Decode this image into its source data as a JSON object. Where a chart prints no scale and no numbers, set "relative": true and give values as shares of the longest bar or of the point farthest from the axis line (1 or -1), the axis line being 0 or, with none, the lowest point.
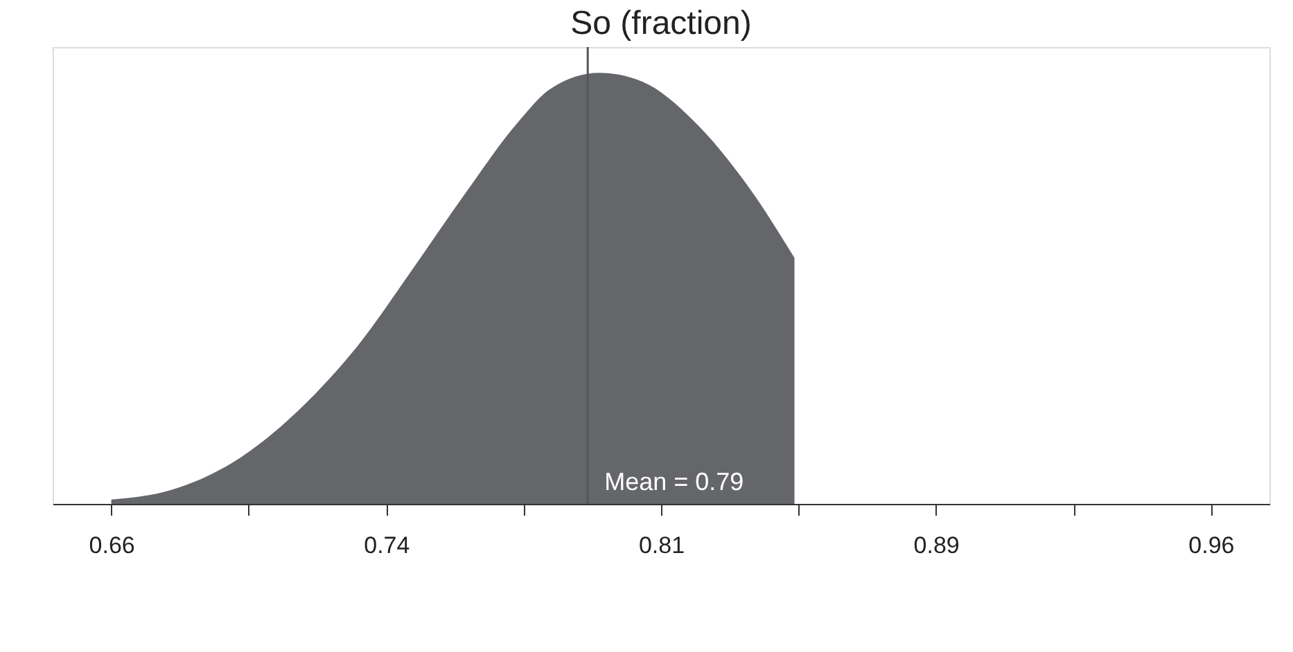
{
  "chart_data": {
    "type": "area",
    "title": "So (fraction)",
    "relative": true,
    "x": [
      0.66,
      0.6766,
      0.6955,
      0.7129,
      0.7277,
      0.742,
      0.7568,
      0.7711,
      0.7798,
      0.7931,
      0.8048,
      0.8191,
      0.8339,
      0.8464
    ],
    "series": [
      {
        "color": "#65666a",
        "values": [
          0.01,
          0.033,
          0.109,
          0.232,
          0.372,
          0.542,
          0.723,
          0.887,
          0.963,
          1.0,
          0.98,
          0.887,
          0.735,
          0.571
        ]
      }
    ],
    "xlim": [
      0.644,
      0.976
    ],
    "xticks": [
      {
        "value": 0.66,
        "label": "0.66"
      },
      {
        "value": 0.6975,
        "label": null
      },
      {
        "value": 0.735,
        "label": "0.74"
      },
      {
        "value": 0.7725,
        "label": null
      },
      {
        "value": 0.81,
        "label": "0.81"
      },
      {
        "value": 0.8475,
        "label": null
      },
      {
        "value": 0.885,
        "label": "0.89"
      },
      {
        "value": 0.9225,
        "label": null
      },
      {
        "value": 0.96,
        "label": "0.96"
      }
    ],
    "ref_lines": [
      {
        "axis": "x",
        "value": 0.79,
        "label": "Mean = 0.79",
        "color": "#555555"
      }
    ],
    "grid": false
  }
}
